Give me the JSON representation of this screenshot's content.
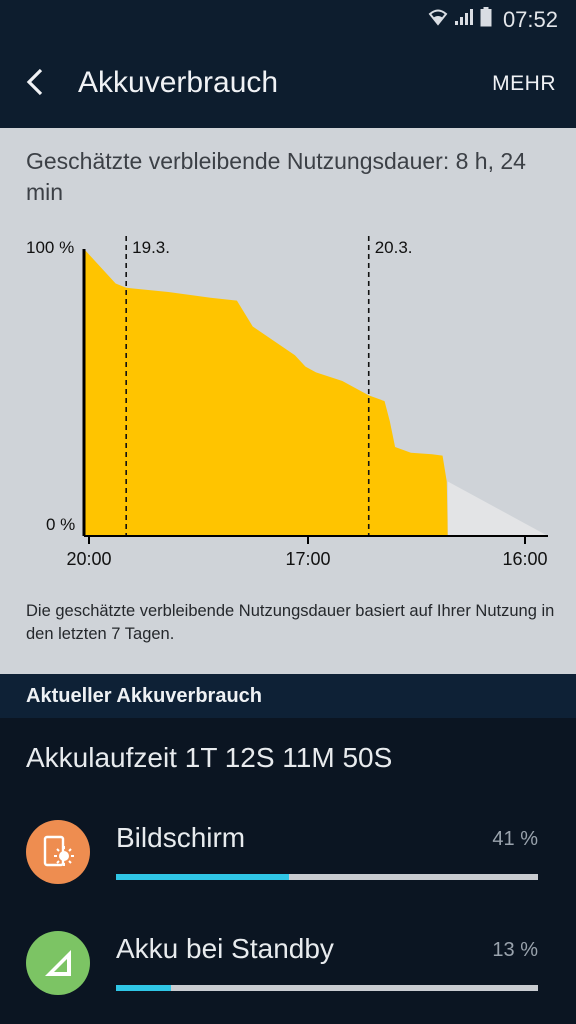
{
  "status_bar": {
    "time": "07:52",
    "icons": [
      "wifi-icon",
      "signal-icon",
      "battery-icon"
    ]
  },
  "app_bar": {
    "title": "Akkuverbrauch",
    "more_label": "MEHR",
    "back_icon": "back-arrow-icon"
  },
  "estimate": {
    "text": "Geschätzte verbleibende Nutzungsdauer: 8 h, 24 min"
  },
  "chart_data": {
    "type": "area",
    "y_labels": [
      "100 %",
      "0 %"
    ],
    "ylim": [
      0,
      100
    ],
    "x_ticks": [
      "20:00",
      "17:00",
      "16:00"
    ],
    "day_markers": [
      {
        "label": "19.3.",
        "x_hours": 4
      },
      {
        "label": "20.3.",
        "x_hours": 27
      }
    ],
    "x_range_hours": [
      0,
      44
    ],
    "series": [
      {
        "kind": "actual",
        "color": "#ffc400",
        "points": [
          [
            0,
            100
          ],
          [
            0.5,
            98
          ],
          [
            1.5,
            94
          ],
          [
            3,
            88
          ],
          [
            4,
            86.5
          ],
          [
            8,
            85
          ],
          [
            12,
            83
          ],
          [
            14.5,
            82
          ],
          [
            15,
            79
          ],
          [
            16,
            73
          ],
          [
            18,
            68
          ],
          [
            20,
            63
          ],
          [
            21,
            59
          ],
          [
            22,
            57
          ],
          [
            24.5,
            54
          ],
          [
            27,
            49
          ],
          [
            28.5,
            47
          ],
          [
            29,
            40
          ],
          [
            29.5,
            31
          ],
          [
            31,
            29
          ],
          [
            33,
            28.5
          ],
          [
            34,
            28
          ],
          [
            34.4,
            19
          ],
          [
            34.5,
            0
          ]
        ]
      },
      {
        "kind": "projected",
        "color": "#e3e4e6",
        "points": [
          [
            34.5,
            19
          ],
          [
            44,
            0
          ]
        ]
      }
    ],
    "colors": {
      "actual": "#ffc400",
      "projected": "#e3e4e6",
      "axis": "#000000"
    }
  },
  "chart_note": "Die geschätzte verbleibende Nutzungsdauer basiert auf Ihrer Nutzung in den letzten 7 Tagen.",
  "section": {
    "title": "Aktueller Akkuverbrauch"
  },
  "battery_time": "Akkulaufzeit 1T 12S 11M 50S",
  "usage_items": [
    {
      "label": "Bildschirm",
      "percent_text": "41 %",
      "percent": 41,
      "icon": "screen-brightness-icon",
      "icon_color": "#ee8d50"
    },
    {
      "label": "Akku bei Standby",
      "percent_text": "13 %",
      "percent": 13,
      "icon": "signal-standby-icon",
      "icon_color": "#7cc464"
    }
  ],
  "accent_color": "#2fc6e6"
}
